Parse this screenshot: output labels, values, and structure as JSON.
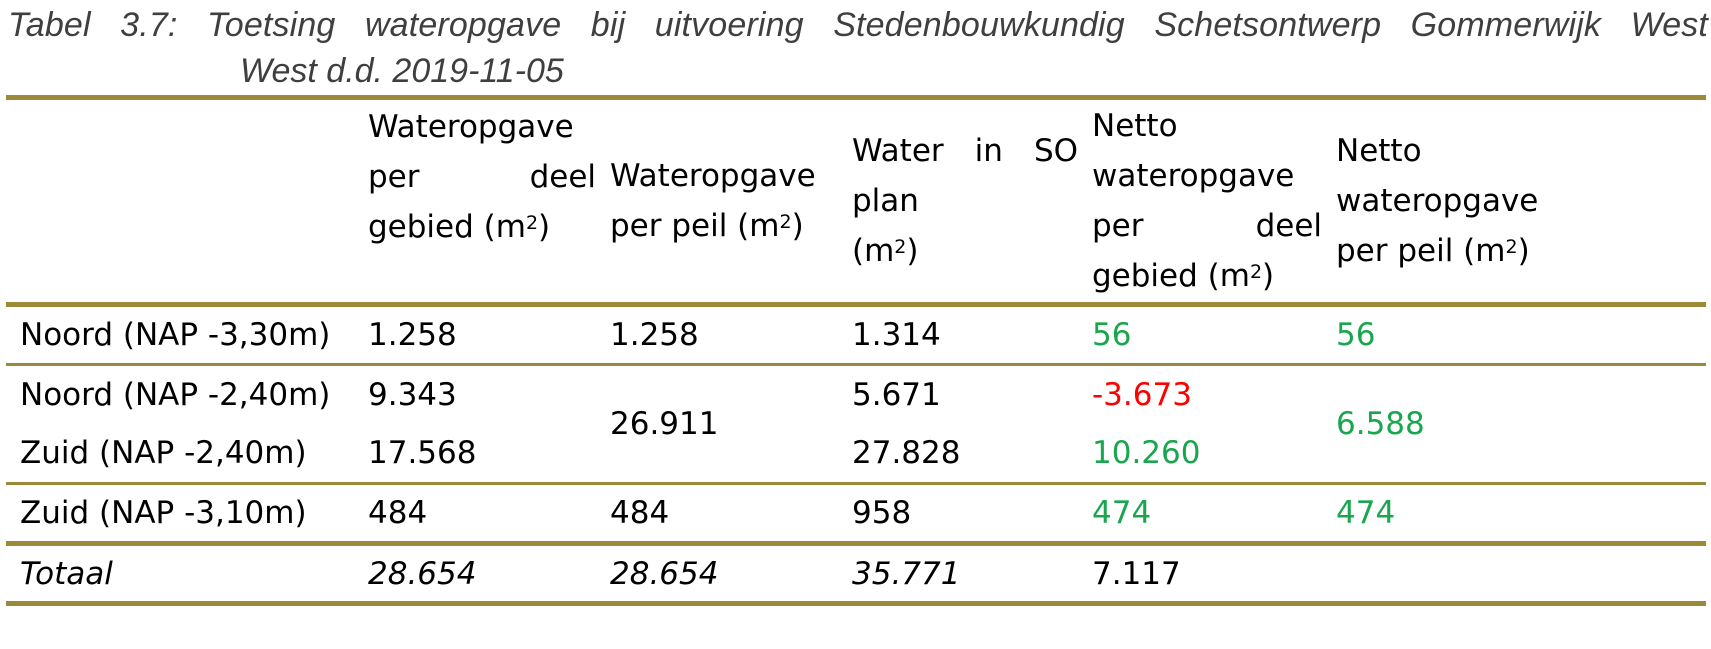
{
  "caption": {
    "line1": "Tabel 3.7: Toetsing wateropgave bij uitvoering Stedenbouwkundig Schetsontwerp Gommerwijk West",
    "line2": "West d.d. 2019-11-05"
  },
  "header": {
    "col1": {
      "l1": "Wateropgave",
      "l2a": "per",
      "l2b": "deel",
      "l3": "gebied (m",
      "sup": "2",
      "close": ")"
    },
    "col2": {
      "l1": "Wateropgave",
      "l2": "per peil (m",
      "sup": "2",
      "close": ")"
    },
    "col3": {
      "l1a": "Water",
      "l1b": "in",
      "l1c": "SO",
      "l2": "plan",
      "l3": "(m",
      "sup": "2",
      "close": ")"
    },
    "col4": {
      "l1": "Netto",
      "l2": "wateropgave",
      "l3a": "per",
      "l3b": "deel",
      "l4": "gebied (m",
      "sup": "2",
      "close": ")"
    },
    "col5": {
      "l1": "Netto",
      "l2": "wateropgave",
      "l3": "per peil (m",
      "sup": "2",
      "close": ")"
    }
  },
  "rows": [
    {
      "label": "Noord (NAP -3,30m)",
      "deel": "1.258",
      "peil": "1.258",
      "so": "1.314",
      "netto_deel": "56",
      "netto_peil": "56"
    },
    {
      "label": "Noord (NAP -2,40m)",
      "deel": "9.343",
      "peil": "26.911",
      "so": "5.671",
      "netto_deel": "-3.673",
      "netto_peil": "6.588"
    },
    {
      "label": "Zuid (NAP -2,40m)",
      "deel": "17.568",
      "so": "27.828",
      "netto_deel": "10.260"
    },
    {
      "label": "Zuid (NAP -3,10m)",
      "deel": "484",
      "peil": "484",
      "so": "958",
      "netto_deel": "474",
      "netto_peil": "474"
    }
  ],
  "total": {
    "label": "Totaal",
    "deel": "28.654",
    "peil": "28.654",
    "so": "35.771",
    "netto_deel": "7.117"
  },
  "colors": {
    "rule": "#9c8a3a",
    "positive": "#1aa64f",
    "negative": "#ff0000",
    "caption": "#3f3f3f"
  }
}
